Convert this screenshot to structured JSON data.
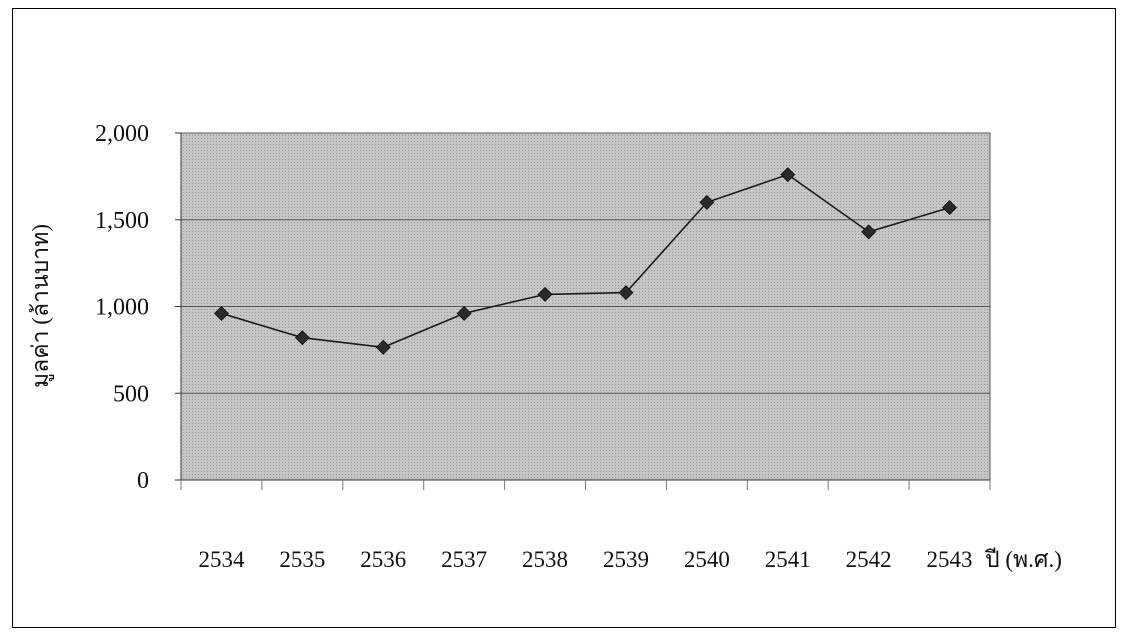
{
  "chart_data": {
    "type": "line",
    "title": "",
    "xlabel": "ปี (พ.ศ.)",
    "ylabel": "มูลค่า (ล้านบาท)",
    "categories": [
      "2534",
      "2535",
      "2536",
      "2537",
      "2538",
      "2539",
      "2540",
      "2541",
      "2542",
      "2543"
    ],
    "series": [
      {
        "values": [
          960,
          820,
          765,
          960,
          1070,
          1080,
          1600,
          1760,
          1430,
          1570
        ]
      }
    ],
    "ylim": [
      0,
      2000
    ],
    "yticks": [
      0,
      500,
      1000,
      1500,
      2000
    ],
    "ytick_labels": [
      "0",
      "500",
      "1,000",
      "1,500",
      "2,000"
    ],
    "grid": "horizontal",
    "legend": "none",
    "marker": "diamond",
    "colors": {
      "plot_background": "#c4c4c4",
      "line": "#1a1a1a",
      "marker": "#2a2a2a",
      "gridline": "#555555"
    }
  }
}
